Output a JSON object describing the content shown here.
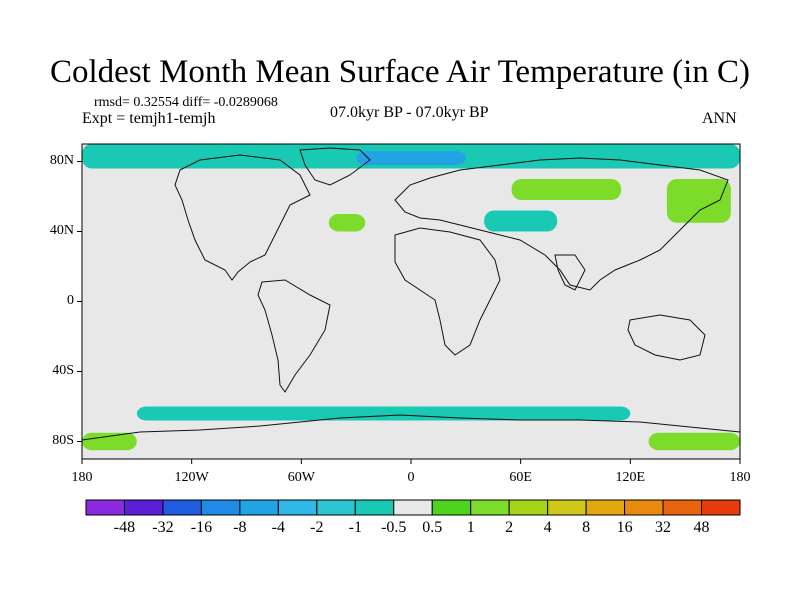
{
  "title": "Coldest Month Mean Surface Air Temperature (in C)",
  "stats_line": "rmsd= 0.32554 diff= -0.0289068",
  "expt_line": "Expt = temjh1-temjh",
  "period_line": "07.0kyr BP - 07.0kyr BP",
  "season": "ANN",
  "map": {
    "lat_labels": [
      {
        "label": "80N",
        "lat": 80
      },
      {
        "label": "40N",
        "lat": 40
      },
      {
        "label": "0",
        "lat": 0
      },
      {
        "label": "40S",
        "lat": -40
      },
      {
        "label": "80S",
        "lat": -80
      }
    ],
    "lon_labels": [
      {
        "label": "180",
        "lon": -180
      },
      {
        "label": "120W",
        "lon": -120
      },
      {
        "label": "60W",
        "lon": -60
      },
      {
        "label": "0",
        "lon": 0
      },
      {
        "label": "60E",
        "lon": 60
      },
      {
        "label": "120E",
        "lon": 120
      },
      {
        "label": "180",
        "lon": 180
      }
    ],
    "background_color": "#e8e8e8",
    "anomaly_regions": [
      {
        "name": "arctic-ocean-cyan",
        "color": "#1ac9b4",
        "lon": [
          -180,
          180
        ],
        "lat": [
          76,
          90
        ]
      },
      {
        "name": "greenland-blue",
        "color": "#22a3e3",
        "lon": [
          -30,
          30
        ],
        "lat": [
          78,
          86
        ]
      },
      {
        "name": "siberia-green",
        "color": "#7ddc2a",
        "lon": [
          55,
          115
        ],
        "lat": [
          58,
          70
        ]
      },
      {
        "name": "east-siberia-green",
        "color": "#7ddc2a",
        "lon": [
          140,
          175
        ],
        "lat": [
          45,
          70
        ]
      },
      {
        "name": "central-asia-cyan",
        "color": "#1ac9b4",
        "lon": [
          40,
          80
        ],
        "lat": [
          40,
          52
        ]
      },
      {
        "name": "europe-green",
        "color": "#7ddc2a",
        "lon": [
          -45,
          -25
        ],
        "lat": [
          40,
          50
        ]
      },
      {
        "name": "southern-ocean-cyan",
        "color": "#1ac9b4",
        "lon": [
          -150,
          120
        ],
        "lat": [
          -68,
          -60
        ]
      },
      {
        "name": "antarctic-green",
        "color": "#7ddc2a",
        "lon": [
          -180,
          -150
        ],
        "lat": [
          -85,
          -75
        ]
      },
      {
        "name": "antarctic-green-east",
        "color": "#7ddc2a",
        "lon": [
          130,
          180
        ],
        "lat": [
          -85,
          -75
        ]
      }
    ]
  },
  "colorbar": {
    "colors": [
      "#8a2be2",
      "#5a1fd6",
      "#1f5ce0",
      "#1f8be6",
      "#22a3e3",
      "#30b8e8",
      "#2bc4cf",
      "#1ac9b4",
      "#e8e8e8",
      "#4fd41e",
      "#7ddc2a",
      "#a8d417",
      "#cfc818",
      "#e3a810",
      "#e88a10",
      "#e8640f",
      "#e83c0c"
    ],
    "labels": [
      "-48",
      "-32",
      "-16",
      "-8",
      "-4",
      "-2",
      "-1",
      "-0.5",
      "0.5",
      "1",
      "2",
      "4",
      "8",
      "16",
      "32",
      "48"
    ]
  }
}
